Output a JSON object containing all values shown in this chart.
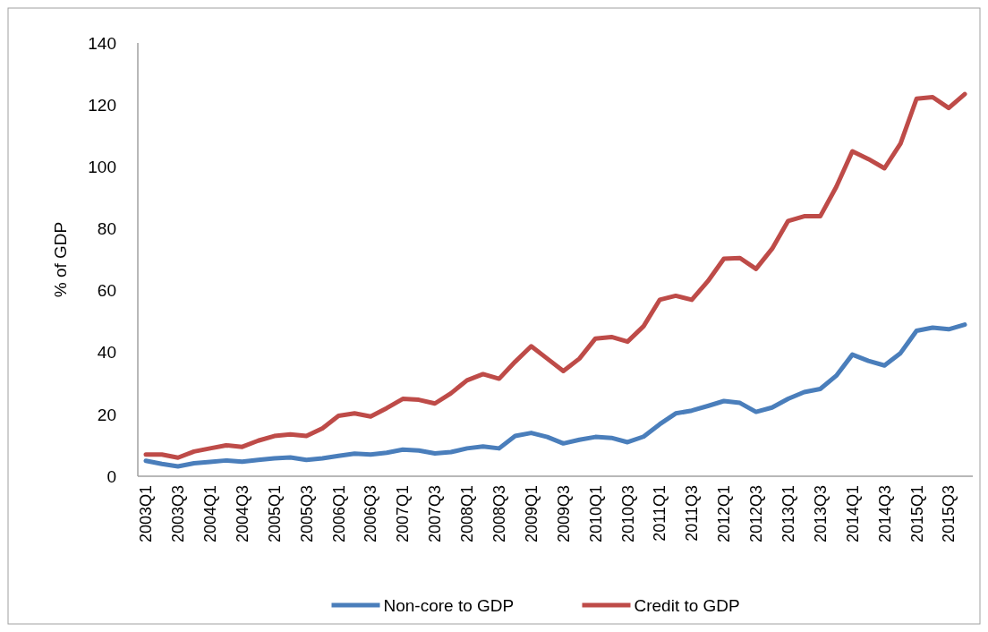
{
  "chart_data": {
    "type": "line",
    "ylabel": "% of GDP",
    "categories": [
      "2003Q1",
      null,
      "2003Q3",
      null,
      "2004Q1",
      null,
      "2004Q3",
      null,
      "2005Q1",
      null,
      "2005Q3",
      null,
      "2006Q1",
      null,
      "2006Q3",
      null,
      "2007Q1",
      null,
      "2007Q3",
      null,
      "2008Q1",
      null,
      "2008Q3",
      null,
      "2009Q1",
      null,
      "2009Q3",
      null,
      "2010Q1",
      null,
      "2010Q3",
      null,
      "2011Q1",
      null,
      "2011Q3",
      null,
      "2012Q1",
      null,
      "2012Q3",
      null,
      "2013Q1",
      null,
      "2013Q3",
      null,
      "2014Q1",
      null,
      "2014Q3",
      null,
      "2015Q1",
      null,
      "2015Q3",
      null
    ],
    "series": [
      {
        "name": "Non-core to GDP",
        "color": "#4a7ebb",
        "values": [
          5,
          4,
          3.2,
          4.2,
          4.6,
          5.1,
          4.7,
          5.3,
          5.8,
          6.1,
          5.3,
          5.8,
          6.6,
          7.3,
          7,
          7.6,
          8.6,
          8.3,
          7.4,
          7.8,
          9,
          9.6,
          9,
          13,
          14,
          12.7,
          10.6,
          11.8,
          12.7,
          12.4,
          11,
          12.8,
          16.8,
          20.3,
          21.2,
          22.7,
          24.3,
          23.7,
          20.8,
          22.2,
          25,
          27.2,
          28.2,
          32.5,
          39.3,
          37.3,
          35.8,
          39.8,
          47,
          48,
          47.5,
          49
        ]
      },
      {
        "name": "Credit to GDP",
        "color": "#be4b48",
        "values": [
          7,
          7,
          6,
          8,
          9,
          10,
          9.5,
          11.5,
          13,
          13.5,
          13,
          15.5,
          19.5,
          20.3,
          19.3,
          22,
          25,
          24.7,
          23.5,
          26.8,
          31,
          33,
          31.5,
          37,
          42,
          38,
          34,
          38,
          44.5,
          45,
          43.5,
          48.5,
          57,
          58.3,
          57,
          63,
          70.3,
          70.5,
          67,
          73.5,
          82.5,
          84,
          84,
          93.5,
          105,
          102.5,
          99.5,
          107.5,
          122,
          122.5,
          119,
          123.5
        ]
      }
    ],
    "ylim": [
      0,
      140
    ],
    "yticks": [
      0,
      20,
      40,
      60,
      80,
      100,
      120,
      140
    ],
    "grid": false,
    "legend": "bottom",
    "marker": "none",
    "line_style": "solid"
  }
}
